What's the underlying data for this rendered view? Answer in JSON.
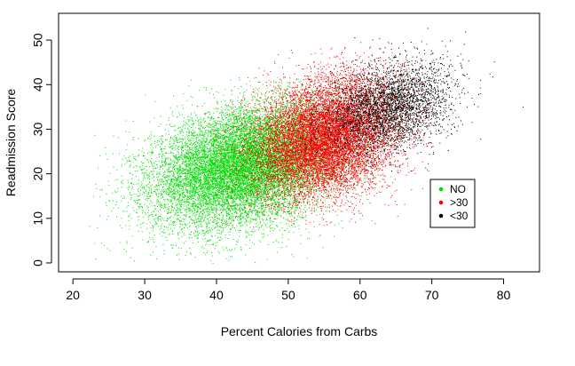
{
  "chart_data": {
    "type": "scatter",
    "title": "",
    "xlabel": "Percent Calories from Carbs",
    "ylabel": "Readmission Score",
    "xlim": [
      18,
      85
    ],
    "ylim": [
      -2,
      56
    ],
    "xticks": [
      20,
      30,
      40,
      50,
      60,
      70,
      80
    ],
    "yticks": [
      0,
      10,
      20,
      30,
      40,
      50
    ],
    "x_tick_labels": [
      "20",
      "30",
      "40",
      "50",
      "60",
      "70",
      "80"
    ],
    "y_tick_labels": [
      "0",
      "10",
      "20",
      "30",
      "40",
      "50"
    ],
    "grid": false,
    "legend_position": "right",
    "series": [
      {
        "name": "NO",
        "color": "#00dd00",
        "point_count_estimate": 14000,
        "center": {
          "x": 44,
          "y": 22
        },
        "spread": {
          "x": 6.5,
          "y": 6.5
        },
        "range": {
          "x": [
            22,
            66
          ],
          "y": [
            0,
            42
          ]
        }
      },
      {
        "name": ">30",
        "color": "#ff0000",
        "point_count_estimate": 11000,
        "center": {
          "x": 55,
          "y": 28
        },
        "spread": {
          "x": 5.0,
          "y": 6.5
        },
        "range": {
          "x": [
            38,
            70
          ],
          "y": [
            8,
            50
          ]
        }
      },
      {
        "name": "<30",
        "color": "#000000",
        "point_count_estimate": 3500,
        "center": {
          "x": 64,
          "y": 35
        },
        "spread": {
          "x": 4.5,
          "y": 5.0
        },
        "range": {
          "x": [
            50,
            83
          ],
          "y": [
            18,
            54
          ]
        }
      }
    ]
  }
}
